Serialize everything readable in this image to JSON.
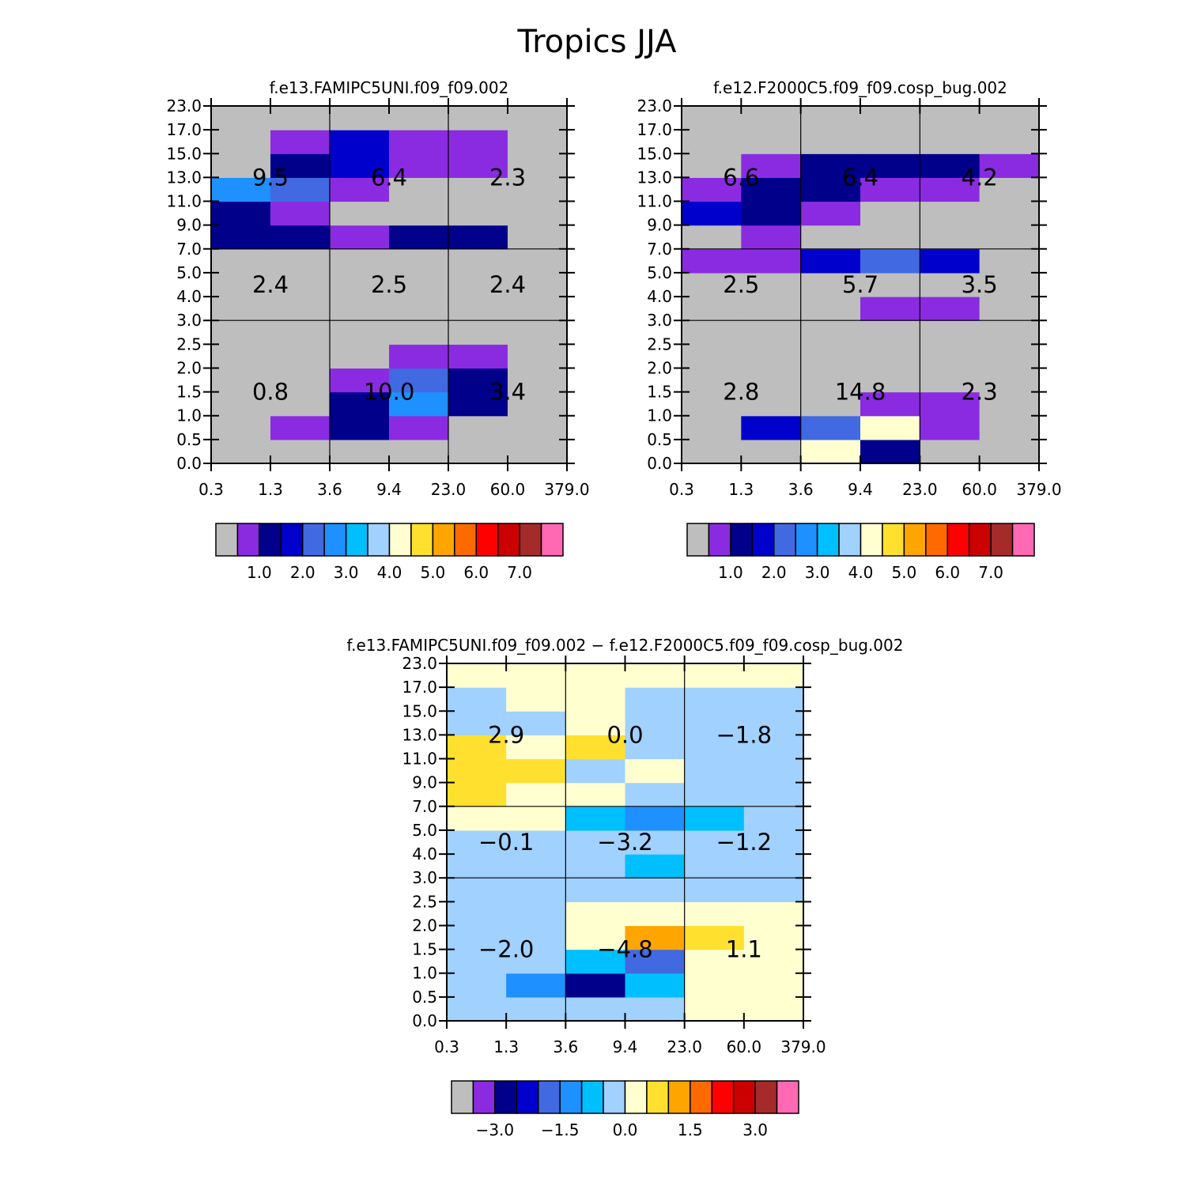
{
  "figure_title": "Tropics JJA",
  "palette": [
    "#bebebe",
    "#8a2be2",
    "#00008b",
    "#0000cd",
    "#4169e1",
    "#1e90ff",
    "#00bfff",
    "#a0d1ff",
    "#ffffd0",
    "#ffe02e",
    "#ffa500",
    "#ff6a00",
    "#ff0000",
    "#cd0000",
    "#a52a2a",
    "#ff69b4"
  ],
  "chart_data": [
    {
      "type": "heatmap",
      "title": "f.e13.FAMIPC5UNI.f09_f09.002",
      "x_ticks": [
        "0.3",
        "1.3",
        "3.6",
        "9.4",
        "23.0",
        "60.0",
        "379.0"
      ],
      "y_ticks": [
        "0.0",
        "0.5",
        "1.0",
        "1.5",
        "2.0",
        "2.5",
        "3.0",
        "4.0",
        "5.0",
        "7.0",
        "9.0",
        "11.0",
        "13.0",
        "15.0",
        "17.0",
        "23.0"
      ],
      "cell_color_index": [
        [
          0,
          0,
          0,
          0,
          0,
          0
        ],
        [
          0,
          1,
          2,
          1,
          0,
          0
        ],
        [
          0,
          0,
          2,
          5,
          2,
          0
        ],
        [
          0,
          0,
          1,
          4,
          2,
          0
        ],
        [
          0,
          0,
          0,
          1,
          1,
          0
        ],
        [
          0,
          0,
          0,
          0,
          0,
          0
        ],
        [
          0,
          0,
          0,
          0,
          0,
          0
        ],
        [
          0,
          0,
          0,
          0,
          0,
          0
        ],
        [
          0,
          0,
          0,
          0,
          0,
          0
        ],
        [
          2,
          2,
          1,
          2,
          2,
          0
        ],
        [
          2,
          1,
          0,
          0,
          0,
          0
        ],
        [
          5,
          4,
          1,
          0,
          0,
          0
        ],
        [
          0,
          2,
          3,
          1,
          1,
          0
        ],
        [
          0,
          1,
          3,
          1,
          1,
          0
        ],
        [
          0,
          0,
          0,
          0,
          0,
          0
        ]
      ],
      "regions": [
        {
          "label": "9.5",
          "col": 1,
          "row": 12
        },
        {
          "label": "6.4",
          "col": 3,
          "row": 12
        },
        {
          "label": "2.3",
          "col": 5,
          "row": 12
        },
        {
          "label": "2.4",
          "col": 1,
          "row": 7.5
        },
        {
          "label": "2.5",
          "col": 3,
          "row": 7.5
        },
        {
          "label": "2.4",
          "col": 5,
          "row": 7.5
        },
        {
          "label": "0.8",
          "col": 1,
          "row": 3
        },
        {
          "label": "10.0",
          "col": 3,
          "row": 3
        },
        {
          "label": "3.4",
          "col": 5,
          "row": 3
        }
      ],
      "colorbar_labels": [
        "1.0",
        "2.0",
        "3.0",
        "4.0",
        "5.0",
        "6.0",
        "7.0"
      ],
      "colorbar_label_boundaries": [
        2,
        4,
        6,
        8,
        10,
        12,
        14
      ]
    },
    {
      "type": "heatmap",
      "title": "f.e12.F2000C5.f09_f09.cosp_bug.002",
      "x_ticks": [
        "0.3",
        "1.3",
        "3.6",
        "9.4",
        "23.0",
        "60.0",
        "379.0"
      ],
      "y_ticks": [
        "0.0",
        "0.5",
        "1.0",
        "1.5",
        "2.0",
        "2.5",
        "3.0",
        "4.0",
        "5.0",
        "7.0",
        "9.0",
        "11.0",
        "13.0",
        "15.0",
        "17.0",
        "23.0"
      ],
      "cell_color_index": [
        [
          0,
          0,
          8,
          2,
          0,
          0
        ],
        [
          0,
          3,
          4,
          8,
          1,
          0
        ],
        [
          0,
          0,
          0,
          1,
          1,
          0
        ],
        [
          0,
          0,
          0,
          0,
          0,
          0
        ],
        [
          0,
          0,
          0,
          0,
          0,
          0
        ],
        [
          0,
          0,
          0,
          0,
          0,
          0
        ],
        [
          0,
          0,
          0,
          1,
          1,
          0
        ],
        [
          0,
          0,
          0,
          0,
          0,
          0
        ],
        [
          1,
          1,
          3,
          4,
          3,
          0
        ],
        [
          0,
          1,
          0,
          0,
          0,
          0
        ],
        [
          3,
          2,
          1,
          0,
          0,
          0
        ],
        [
          1,
          2,
          2,
          1,
          1,
          0
        ],
        [
          0,
          1,
          2,
          2,
          2,
          1
        ],
        [
          0,
          0,
          0,
          0,
          0,
          0
        ],
        [
          0,
          0,
          0,
          0,
          0,
          0
        ]
      ],
      "regions": [
        {
          "label": "6.6",
          "col": 1,
          "row": 12
        },
        {
          "label": "6.4",
          "col": 3,
          "row": 12
        },
        {
          "label": "4.2",
          "col": 5,
          "row": 12
        },
        {
          "label": "2.5",
          "col": 1,
          "row": 7.5
        },
        {
          "label": "5.7",
          "col": 3,
          "row": 7.5
        },
        {
          "label": "3.5",
          "col": 5,
          "row": 7.5
        },
        {
          "label": "2.8",
          "col": 1,
          "row": 3
        },
        {
          "label": "14.8",
          "col": 3,
          "row": 3
        },
        {
          "label": "2.3",
          "col": 5,
          "row": 3
        }
      ],
      "colorbar_labels": [
        "1.0",
        "2.0",
        "3.0",
        "4.0",
        "5.0",
        "6.0",
        "7.0"
      ],
      "colorbar_label_boundaries": [
        2,
        4,
        6,
        8,
        10,
        12,
        14
      ]
    },
    {
      "type": "heatmap",
      "title": "f.e13.FAMIPC5UNI.f09_f09.002 − f.e12.F2000C5.f09_f09.cosp_bug.002",
      "x_ticks": [
        "0.3",
        "1.3",
        "3.6",
        "9.4",
        "23.0",
        "60.0",
        "379.0"
      ],
      "y_ticks": [
        "0.0",
        "0.5",
        "1.0",
        "1.5",
        "2.0",
        "2.5",
        "3.0",
        "4.0",
        "5.0",
        "7.0",
        "9.0",
        "11.0",
        "13.0",
        "15.0",
        "17.0",
        "23.0"
      ],
      "cell_color_index": [
        [
          7,
          7,
          7,
          7,
          8,
          8
        ],
        [
          7,
          5,
          2,
          6,
          8,
          8
        ],
        [
          7,
          7,
          6,
          4,
          8,
          8
        ],
        [
          7,
          7,
          8,
          10,
          9,
          8
        ],
        [
          7,
          7,
          8,
          8,
          8,
          8
        ],
        [
          7,
          7,
          7,
          7,
          7,
          7
        ],
        [
          7,
          7,
          7,
          6,
          7,
          7
        ],
        [
          7,
          7,
          7,
          7,
          7,
          7
        ],
        [
          8,
          8,
          6,
          5,
          6,
          7
        ],
        [
          9,
          8,
          8,
          7,
          7,
          7
        ],
        [
          9,
          9,
          7,
          8,
          7,
          7
        ],
        [
          9,
          8,
          9,
          7,
          7,
          7
        ],
        [
          7,
          7,
          8,
          7,
          7,
          7
        ],
        [
          7,
          8,
          8,
          7,
          7,
          7
        ],
        [
          8,
          8,
          8,
          8,
          8,
          8
        ]
      ],
      "regions": [
        {
          "label": "2.9",
          "col": 1,
          "row": 12
        },
        {
          "label": "0.0",
          "col": 3,
          "row": 12
        },
        {
          "label": "−1.8",
          "col": 5,
          "row": 12
        },
        {
          "label": "−0.1",
          "col": 1,
          "row": 7.5
        },
        {
          "label": "−3.2",
          "col": 3,
          "row": 7.5
        },
        {
          "label": "−1.2",
          "col": 5,
          "row": 7.5
        },
        {
          "label": "−2.0",
          "col": 1,
          "row": 3
        },
        {
          "label": "−4.8",
          "col": 3,
          "row": 3
        },
        {
          "label": "1.1",
          "col": 5,
          "row": 3
        }
      ],
      "colorbar_labels": [
        "−3.0",
        "−1.5",
        "0.0",
        "1.5",
        "3.0"
      ],
      "colorbar_label_boundaries": [
        2,
        5,
        8,
        11,
        14
      ]
    }
  ]
}
